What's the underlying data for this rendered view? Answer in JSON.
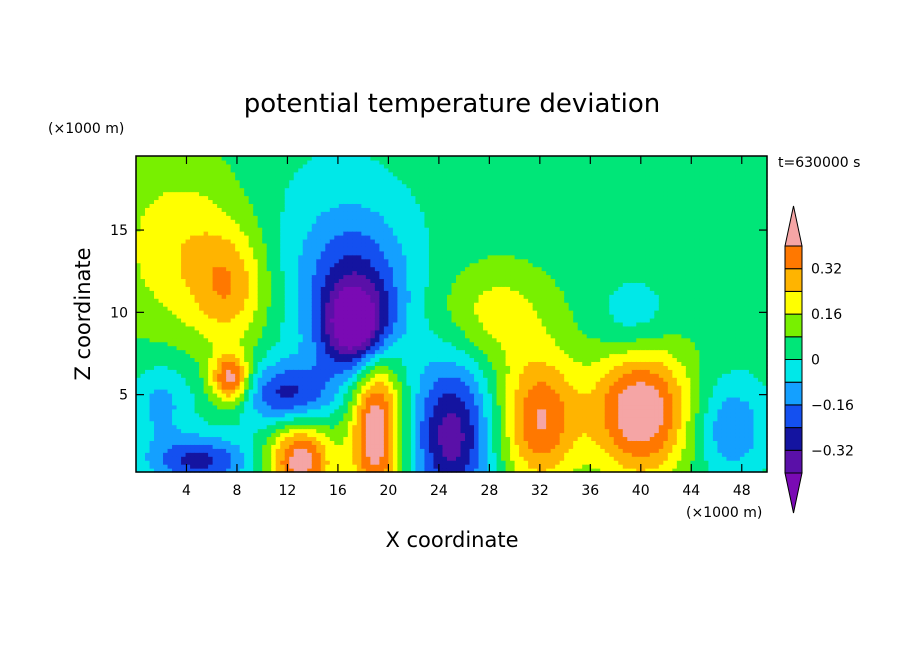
{
  "chart_data": {
    "type": "heatmap",
    "title": "potential temperature deviation",
    "xlabel": "X coordinate",
    "ylabel": "Z coordinate",
    "x_unit": "(×1000 m)",
    "y_unit": "(×1000 m)",
    "time_label": "t=630000 s",
    "xlim": [
      0,
      50
    ],
    "ylim": [
      0.3,
      19.5
    ],
    "x_ticks": [
      4,
      8,
      12,
      16,
      20,
      24,
      28,
      32,
      36,
      40,
      44,
      48
    ],
    "y_ticks": [
      5,
      10,
      15
    ],
    "colorbar": {
      "levels": [
        -0.4,
        -0.32,
        -0.24,
        -0.16,
        -0.08,
        0,
        0.08,
        0.16,
        0.24,
        0.32,
        0.4
      ],
      "tick_labels": [
        "0.32",
        "0.16",
        "0",
        "-0.16",
        "-0.32"
      ],
      "tick_values": [
        0.32,
        0.16,
        0,
        -0.16,
        -0.32
      ],
      "colors": [
        "#7a0ab4",
        "#5a10a8",
        "#1414a0",
        "#1450f0",
        "#14a0ff",
        "#00e8e8",
        "#00e678",
        "#78f000",
        "#ffff00",
        "#ffb400",
        "#ff7800",
        "#ff2800",
        "#f5a5a5"
      ],
      "extend": "both"
    },
    "background_level": 0.04,
    "features": [
      {
        "x": 3.5,
        "z": 14.0,
        "rx": 5.5,
        "rz": 5.5,
        "v": 0.18
      },
      {
        "x": 7.5,
        "z": 11.5,
        "rx": 3.0,
        "rz": 3.5,
        "v": 0.22
      },
      {
        "x": 15.5,
        "z": 13.5,
        "rx": 7.0,
        "rz": 6.5,
        "v": -0.09
      },
      {
        "x": 17.5,
        "z": 11.0,
        "rx": 4.0,
        "rz": 4.5,
        "v": -0.25
      },
      {
        "x": 17.5,
        "z": 9.0,
        "rx": 2.5,
        "rz": 2.5,
        "v": -0.4
      },
      {
        "x": 28.5,
        "z": 10.0,
        "rx": 4.5,
        "rz": 3.0,
        "v": 0.16
      },
      {
        "x": 39.5,
        "z": 9.5,
        "rx": 3.0,
        "rz": 2.5,
        "v": -0.12
      },
      {
        "x": 25.0,
        "z": 2.5,
        "rx": 3.0,
        "rz": 4.5,
        "v": -0.4
      },
      {
        "x": 32.0,
        "z": 3.5,
        "rx": 3.0,
        "rz": 4.0,
        "v": 0.36
      },
      {
        "x": 40.0,
        "z": 4.0,
        "rx": 4.0,
        "rz": 4.0,
        "v": 0.45
      },
      {
        "x": 19.0,
        "z": 3.0,
        "rx": 2.0,
        "rz": 5.0,
        "v": 0.45
      },
      {
        "x": 13.0,
        "z": 1.0,
        "rx": 2.5,
        "rz": 2.5,
        "v": 0.42
      },
      {
        "x": 5.0,
        "z": 1.0,
        "rx": 4.0,
        "rz": 1.5,
        "v": -0.3
      },
      {
        "x": 7.5,
        "z": 6.0,
        "rx": 1.5,
        "rz": 1.5,
        "v": 0.4
      },
      {
        "x": 12.0,
        "z": 5.0,
        "rx": 3.5,
        "rz": 2.0,
        "v": -0.3
      },
      {
        "x": 47.0,
        "z": 3.0,
        "rx": 3.0,
        "rz": 3.0,
        "v": -0.2
      },
      {
        "x": 2.0,
        "z": 4.5,
        "rx": 2.5,
        "rz": 2.5,
        "v": -0.15
      }
    ]
  }
}
